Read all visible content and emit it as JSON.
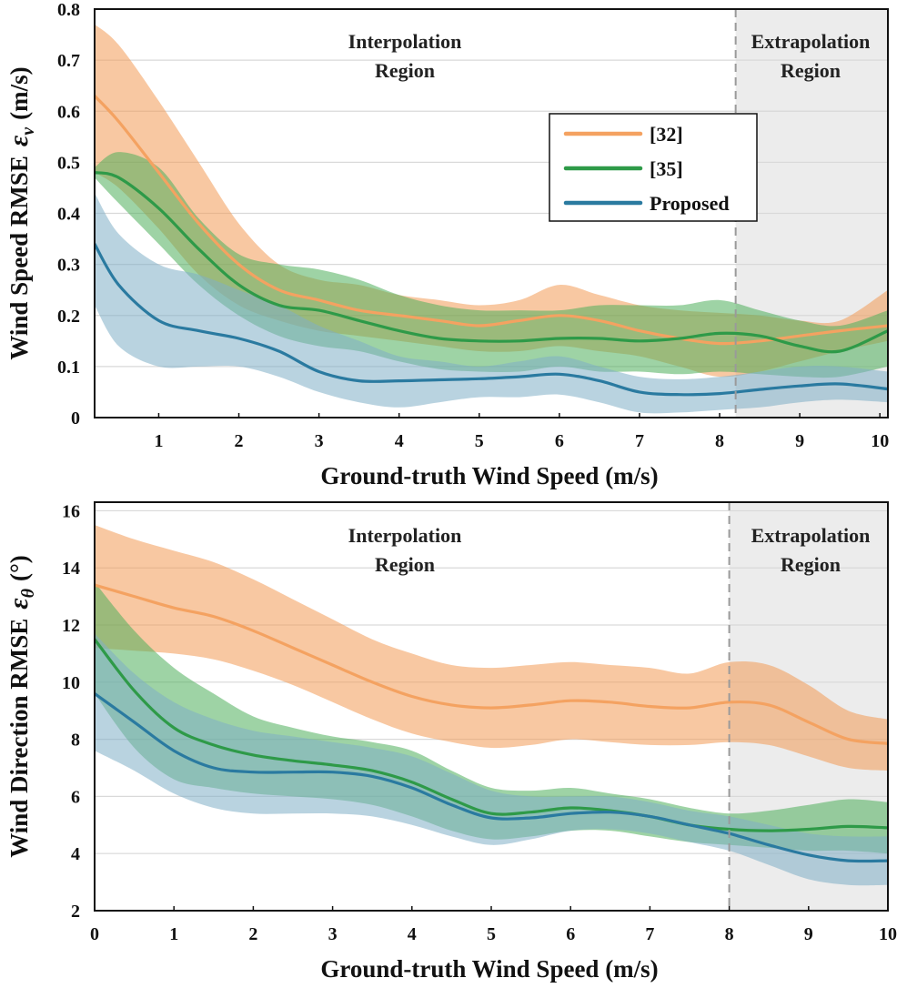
{
  "chart_data": [
    {
      "type": "line",
      "panel": "top",
      "title": "",
      "xlabel": "Ground-truth Wind Speed (m/s)",
      "ylabel_text": "Wind Speed RMSE",
      "ylabel_symbol": "ε",
      "ylabel_subscript": "v",
      "ylabel_unit": "(m/s)",
      "xlim": [
        0.2,
        10.1
      ],
      "ylim": [
        0,
        0.8
      ],
      "xticks": [
        1,
        2,
        3,
        4,
        5,
        6,
        7,
        8,
        9,
        10
      ],
      "yticks": [
        0,
        0.1,
        0.2,
        0.3,
        0.4,
        0.5,
        0.6,
        0.7,
        0.8
      ],
      "ytick_labels": [
        "0",
        "0.1",
        "0.2",
        "0.3",
        "0.4",
        "0.5",
        "0.6",
        "0.7",
        "0.8"
      ],
      "grid": true,
      "extrapolation_start": 8.2,
      "regions": {
        "interpolation": [
          "Interpolation",
          "Region"
        ],
        "extrapolation": [
          "Extrapolation",
          "Region"
        ]
      },
      "legend": {
        "position": "upper-right",
        "entries": [
          "[32]",
          "[35]",
          "Proposed"
        ]
      },
      "series": [
        {
          "name": "[32]",
          "color": "#f4a261",
          "band_color": "#f29a55",
          "x": [
            0.2,
            0.5,
            1.0,
            1.5,
            2.0,
            2.5,
            3.0,
            3.5,
            4.0,
            4.5,
            5.0,
            5.5,
            6.0,
            6.5,
            7.0,
            7.5,
            8.0,
            8.5,
            9.0,
            9.5,
            10.1
          ],
          "mean": [
            0.63,
            0.58,
            0.48,
            0.38,
            0.3,
            0.25,
            0.23,
            0.21,
            0.2,
            0.19,
            0.18,
            0.19,
            0.2,
            0.19,
            0.17,
            0.155,
            0.145,
            0.15,
            0.16,
            0.17,
            0.18
          ],
          "upper": [
            0.77,
            0.73,
            0.62,
            0.5,
            0.38,
            0.3,
            0.27,
            0.26,
            0.24,
            0.23,
            0.22,
            0.23,
            0.26,
            0.24,
            0.22,
            0.21,
            0.205,
            0.2,
            0.19,
            0.19,
            0.25
          ],
          "lower": [
            0.48,
            0.45,
            0.37,
            0.28,
            0.22,
            0.19,
            0.17,
            0.16,
            0.15,
            0.14,
            0.13,
            0.13,
            0.14,
            0.13,
            0.12,
            0.1,
            0.08,
            0.09,
            0.11,
            0.13,
            0.15
          ]
        },
        {
          "name": "[35]",
          "color": "#2e9a48",
          "band_color": "#4fae5b",
          "x": [
            0.2,
            0.5,
            1.0,
            1.5,
            2.0,
            2.5,
            3.0,
            3.5,
            4.0,
            4.5,
            5.0,
            5.5,
            6.0,
            6.5,
            7.0,
            7.5,
            8.0,
            8.5,
            9.0,
            9.5,
            10.1
          ],
          "mean": [
            0.48,
            0.47,
            0.41,
            0.33,
            0.26,
            0.22,
            0.21,
            0.19,
            0.17,
            0.155,
            0.15,
            0.15,
            0.155,
            0.155,
            0.15,
            0.155,
            0.165,
            0.16,
            0.14,
            0.13,
            0.17
          ],
          "upper": [
            0.49,
            0.52,
            0.49,
            0.39,
            0.32,
            0.3,
            0.29,
            0.27,
            0.24,
            0.22,
            0.21,
            0.21,
            0.21,
            0.22,
            0.22,
            0.22,
            0.23,
            0.21,
            0.19,
            0.18,
            0.21
          ],
          "lower": [
            0.47,
            0.42,
            0.34,
            0.26,
            0.2,
            0.16,
            0.14,
            0.13,
            0.11,
            0.095,
            0.09,
            0.09,
            0.1,
            0.09,
            0.09,
            0.085,
            0.09,
            0.085,
            0.08,
            0.08,
            0.1
          ]
        },
        {
          "name": "Proposed",
          "color": "#2a7aa0",
          "band_color": "#7faec6",
          "x": [
            0.2,
            0.5,
            1.0,
            1.5,
            2.0,
            2.5,
            3.0,
            3.5,
            4.0,
            4.5,
            5.0,
            5.5,
            6.0,
            6.5,
            7.0,
            7.5,
            8.0,
            8.5,
            9.0,
            9.5,
            10.1
          ],
          "mean": [
            0.34,
            0.26,
            0.19,
            0.17,
            0.155,
            0.13,
            0.09,
            0.072,
            0.072,
            0.074,
            0.076,
            0.08,
            0.085,
            0.072,
            0.05,
            0.045,
            0.047,
            0.055,
            0.062,
            0.066,
            0.056
          ],
          "upper": [
            0.44,
            0.36,
            0.3,
            0.28,
            0.25,
            0.22,
            0.18,
            0.15,
            0.12,
            0.11,
            0.1,
            0.11,
            0.12,
            0.1,
            0.08,
            0.075,
            0.08,
            0.09,
            0.1,
            0.1,
            0.09
          ],
          "lower": [
            0.22,
            0.14,
            0.1,
            0.1,
            0.1,
            0.08,
            0.05,
            0.03,
            0.02,
            0.03,
            0.04,
            0.04,
            0.045,
            0.03,
            0.01,
            0.01,
            0.015,
            0.02,
            0.03,
            0.035,
            0.03
          ]
        }
      ]
    },
    {
      "type": "line",
      "panel": "bottom",
      "title": "",
      "xlabel": "Ground-truth Wind Speed (m/s)",
      "ylabel_text": "Wind Direction RMSE",
      "ylabel_symbol": "ε",
      "ylabel_subscript": "θ",
      "ylabel_unit": "(°)",
      "xlim": [
        0,
        10
      ],
      "ylim": [
        2,
        16.3
      ],
      "xticks": [
        0,
        1,
        2,
        3,
        4,
        5,
        6,
        7,
        8,
        9,
        10
      ],
      "yticks": [
        2,
        4,
        6,
        8,
        10,
        12,
        14,
        16
      ],
      "ytick_labels": [
        "2",
        "4",
        "6",
        "8",
        "10",
        "12",
        "14",
        "16"
      ],
      "grid": true,
      "extrapolation_start": 8.0,
      "regions": {
        "interpolation": [
          "Interpolation",
          "Region"
        ],
        "extrapolation": [
          "Extrapolation",
          "Region"
        ]
      },
      "series": [
        {
          "name": "[32]",
          "color": "#f4a261",
          "band_color": "#f29a55",
          "x": [
            0,
            0.5,
            1.0,
            1.5,
            2.0,
            2.5,
            3.0,
            3.5,
            4.0,
            4.5,
            5.0,
            5.5,
            6.0,
            6.5,
            7.0,
            7.5,
            8.0,
            8.5,
            9.0,
            9.5,
            10
          ],
          "mean": [
            13.4,
            13.0,
            12.6,
            12.3,
            11.8,
            11.2,
            10.6,
            10.0,
            9.5,
            9.2,
            9.1,
            9.2,
            9.35,
            9.3,
            9.15,
            9.1,
            9.3,
            9.2,
            8.6,
            8.0,
            7.85
          ],
          "upper": [
            15.5,
            15.0,
            14.6,
            14.2,
            13.6,
            12.9,
            12.2,
            11.5,
            11.0,
            10.6,
            10.5,
            10.6,
            10.7,
            10.6,
            10.5,
            10.3,
            10.7,
            10.6,
            9.9,
            9.0,
            8.7
          ],
          "lower": [
            11.2,
            11.1,
            11.0,
            10.8,
            10.4,
            9.9,
            9.3,
            8.7,
            8.2,
            7.9,
            7.7,
            7.8,
            8.0,
            7.9,
            7.8,
            7.8,
            7.9,
            7.8,
            7.4,
            7.0,
            6.9
          ]
        },
        {
          "name": "[35]",
          "color": "#2e9a48",
          "band_color": "#4fae5b",
          "x": [
            0,
            0.5,
            1.0,
            1.5,
            2.0,
            2.5,
            3.0,
            3.5,
            4.0,
            4.5,
            5.0,
            5.5,
            6.0,
            6.5,
            7.0,
            7.5,
            8.0,
            8.5,
            9.0,
            9.5,
            10
          ],
          "mean": [
            11.5,
            9.7,
            8.4,
            7.8,
            7.45,
            7.25,
            7.1,
            6.9,
            6.5,
            5.9,
            5.4,
            5.45,
            5.6,
            5.5,
            5.3,
            5.0,
            4.85,
            4.8,
            4.85,
            4.95,
            4.9
          ],
          "upper": [
            13.5,
            11.8,
            10.5,
            9.6,
            8.8,
            8.4,
            8.1,
            7.9,
            7.6,
            6.9,
            6.3,
            6.2,
            6.3,
            6.1,
            5.9,
            5.6,
            5.4,
            5.5,
            5.7,
            5.9,
            5.8
          ],
          "lower": [
            9.6,
            7.7,
            6.6,
            6.3,
            6.1,
            6.0,
            5.9,
            5.7,
            5.3,
            4.8,
            4.5,
            4.6,
            4.8,
            4.8,
            4.6,
            4.4,
            4.3,
            4.2,
            4.1,
            4.1,
            4.0
          ]
        },
        {
          "name": "Proposed",
          "color": "#2a7aa0",
          "band_color": "#7faec6",
          "x": [
            0,
            0.5,
            1.0,
            1.5,
            2.0,
            2.5,
            3.0,
            3.5,
            4.0,
            4.5,
            5.0,
            5.5,
            6.0,
            6.5,
            7.0,
            7.5,
            8.0,
            8.5,
            9.0,
            9.5,
            10
          ],
          "mean": [
            9.6,
            8.6,
            7.6,
            7.0,
            6.85,
            6.85,
            6.85,
            6.7,
            6.3,
            5.7,
            5.25,
            5.25,
            5.4,
            5.45,
            5.3,
            5.0,
            4.7,
            4.3,
            3.95,
            3.75,
            3.75
          ],
          "upper": [
            11.7,
            10.3,
            9.3,
            8.7,
            8.3,
            8.1,
            7.9,
            7.7,
            7.4,
            6.8,
            6.2,
            6.0,
            6.0,
            6.0,
            5.8,
            5.5,
            5.3,
            5.0,
            4.7,
            4.6,
            4.6
          ],
          "lower": [
            7.6,
            6.9,
            6.1,
            5.6,
            5.4,
            5.4,
            5.4,
            5.3,
            5.0,
            4.6,
            4.3,
            4.5,
            4.8,
            4.85,
            4.7,
            4.4,
            4.1,
            3.6,
            3.1,
            2.9,
            2.9
          ]
        }
      ]
    }
  ]
}
